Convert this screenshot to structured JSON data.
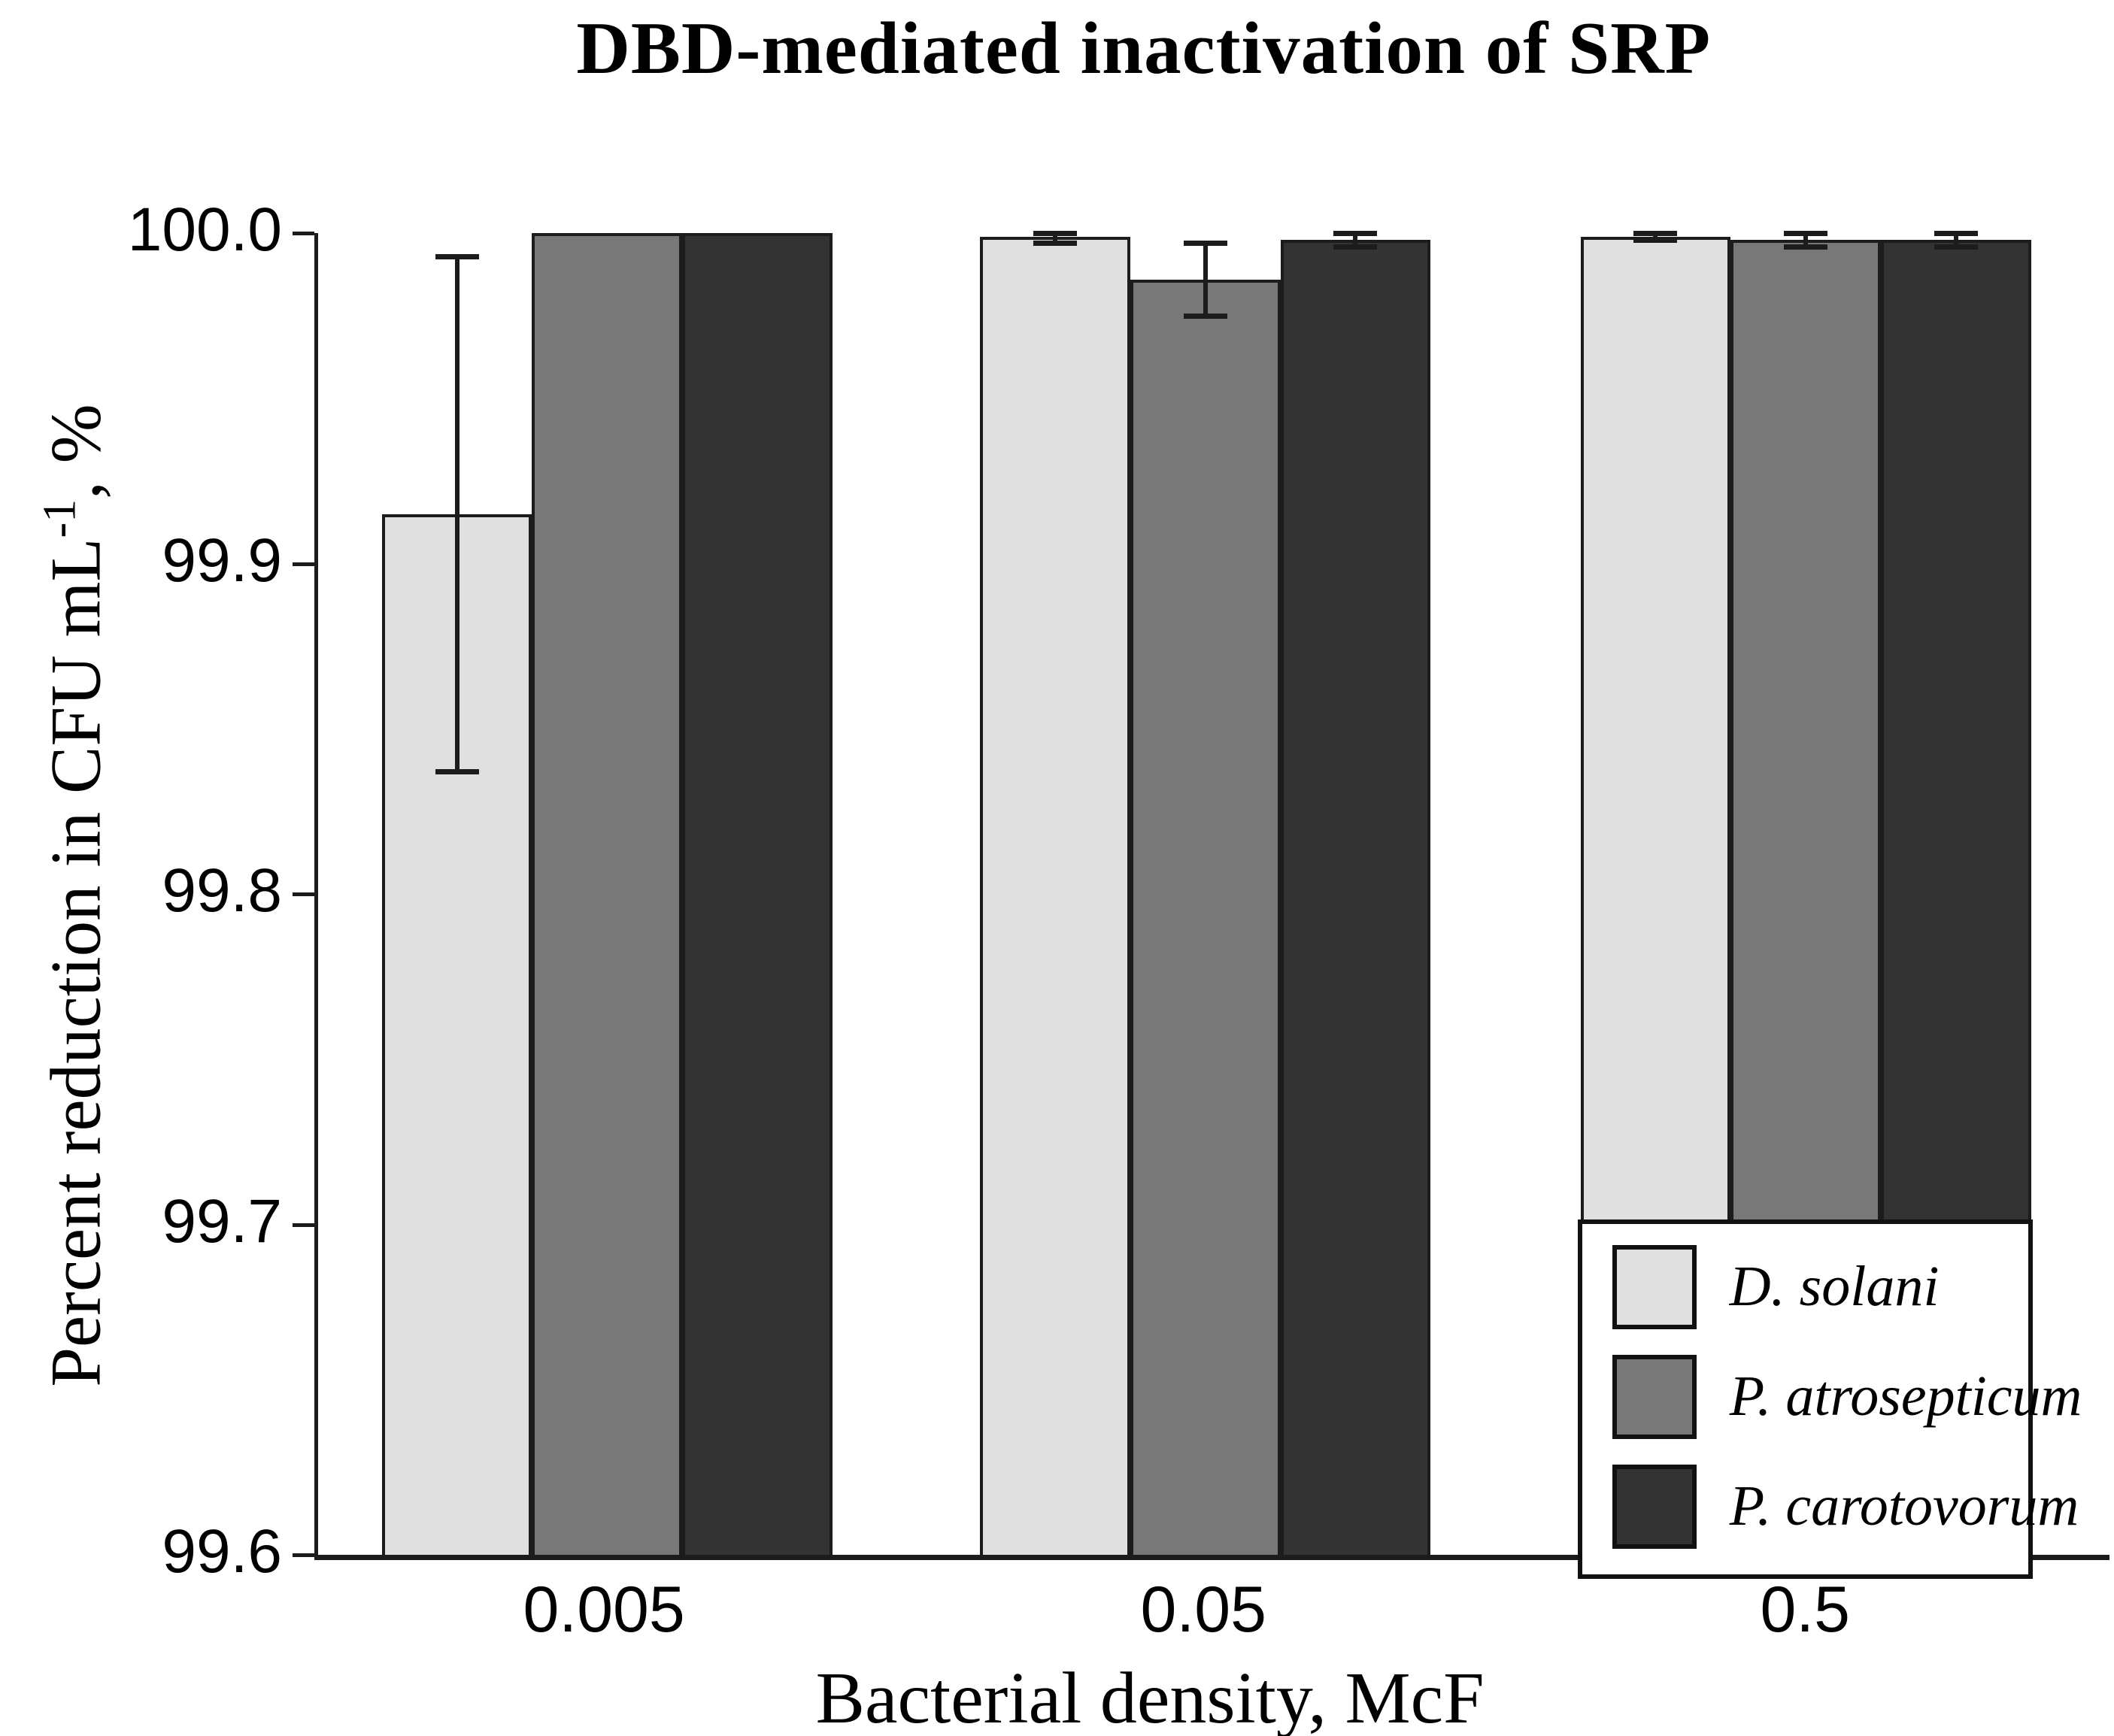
{
  "chart_data": {
    "type": "bar",
    "title": "DBD-mediated inactivation of SRP",
    "xlabel": "Bacterial density, McF",
    "ylabel": "Percent reduction in CFU mL^-1, %",
    "ylabel_parts": {
      "pre": "Percent reduction in CFU mL",
      "sup": "-1",
      "post": ", %"
    },
    "categories": [
      "0.005",
      "0.05",
      "0.5"
    ],
    "series": [
      {
        "name": "D. solani",
        "color": "#e0e0e0",
        "values": [
          99.915,
          99.999,
          99.999
        ],
        "errors": [
          0.078,
          0.002,
          0.001
        ]
      },
      {
        "name": "P. atrosepticum",
        "color": "#787878",
        "values": [
          100.0,
          99.986,
          99.998
        ],
        "errors": [
          0.0,
          0.011,
          0.002
        ]
      },
      {
        "name": "P. carotovorum",
        "color": "#333333",
        "values": [
          100.0,
          99.998,
          99.998
        ],
        "errors": [
          0.0,
          0.002,
          0.002
        ]
      }
    ],
    "ylim": [
      99.6,
      100.0
    ],
    "yticks": [
      "100.0",
      "99.9",
      "99.8",
      "99.7",
      "99.6"
    ],
    "grid": false,
    "error_bars": true,
    "legend_position": "inside-lower-right"
  },
  "style": {
    "axis_color": "#1c1c1c",
    "bar_border_color": "#1c1c1c",
    "background": "#ffffff"
  }
}
